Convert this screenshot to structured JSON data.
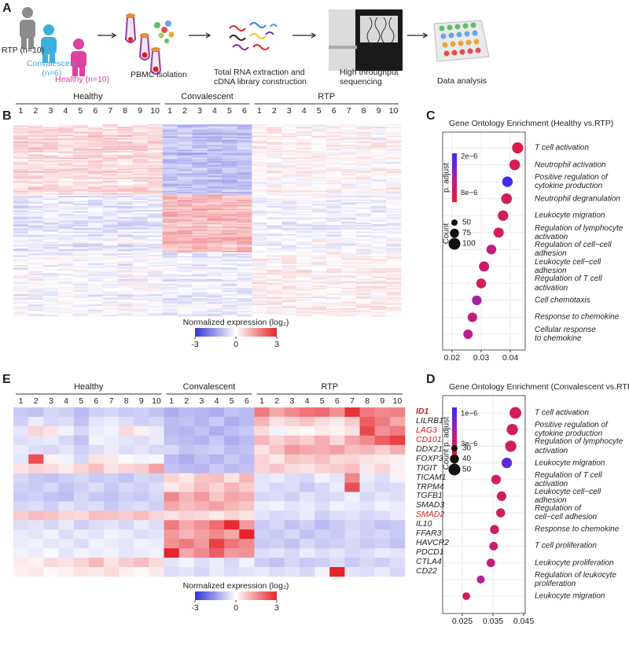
{
  "panel_labels": [
    "A",
    "B",
    "C",
    "D",
    "E"
  ],
  "workflow": {
    "labels": [
      {
        "text": "RTP (n=10)",
        "color": "#222222"
      },
      {
        "text": "Convalescent\n(n=6)",
        "color": "#3ba7d6"
      },
      {
        "text": "Healthy (n=10)",
        "color": "#d6409f"
      },
      {
        "text": "PBMC  isolation",
        "color": "#222222"
      },
      {
        "text": "Total RNA extraction and\ncDNA library construction",
        "color": "#222222"
      },
      {
        "text": "High throughput\nsequencing",
        "color": "#222222"
      },
      {
        "text": "Data analysis",
        "color": "#222222"
      }
    ]
  },
  "chart_data": [
    {
      "type": "heatmap",
      "groups": [
        {
          "name": "Healthy",
          "columns": [
            1,
            2,
            3,
            4,
            5,
            6,
            7,
            8,
            9,
            10
          ]
        },
        {
          "name": "Convalescent",
          "columns": [
            1,
            2,
            3,
            4,
            5,
            6
          ]
        },
        {
          "name": "RTP",
          "columns": [
            1,
            2,
            3,
            4,
            5,
            6,
            7,
            8,
            9,
            10
          ]
        }
      ],
      "colorbar_label": "Normalized expression (log₂)",
      "clim": [
        -3,
        3
      ],
      "cticks": [
        -3,
        0,
        3
      ],
      "cmap": [
        "#3535d8",
        "#ffffff",
        "#e5232a"
      ]
    },
    {
      "type": "heatmap",
      "groups": [
        {
          "name": "Healthy",
          "columns": [
            1,
            2,
            3,
            4,
            5,
            6,
            7,
            8,
            9,
            10
          ]
        },
        {
          "name": "Convalescent",
          "columns": [
            1,
            2,
            3,
            4,
            5,
            6
          ]
        },
        {
          "name": "RTP",
          "columns": [
            1,
            2,
            3,
            4,
            5,
            6,
            7,
            8,
            9,
            10
          ]
        }
      ],
      "genes": [
        "ID1",
        "LILRB1",
        "LAG3",
        "CD101",
        "DDX21",
        "FOXP3",
        "TIGIT",
        "TICAM1",
        "TRPM4",
        "TGFB1",
        "SMAD3",
        "SMAD2",
        "IL10",
        "FFAR3",
        "HAVCR2",
        "PDCD1",
        "CTLA4",
        "CD22"
      ],
      "label_colors": [
        "#d7191f",
        "#222222",
        "#d7191f",
        "#d7191f",
        "#222222",
        "#222222",
        "#222222",
        "#222222",
        "#222222",
        "#222222",
        "#222222",
        "#d7191f",
        "#222222",
        "#222222",
        "#222222",
        "#222222",
        "#222222",
        "#222222"
      ],
      "bold_rows": [
        0
      ],
      "values": [
        [
          -0.8,
          -0.9,
          -0.6,
          -0.7,
          -1.0,
          -0.7,
          -0.6,
          -0.8,
          -0.7,
          -0.9,
          -1.2,
          -1.0,
          -1.1,
          -1.2,
          -0.9,
          -1.0,
          1.8,
          1.2,
          1.6,
          1.9,
          2.0,
          1.5,
          2.8,
          1.8,
          1.6,
          1.7
        ],
        [
          -0.7,
          -0.3,
          -0.6,
          -0.5,
          -0.9,
          -0.4,
          -0.3,
          -0.5,
          -0.7,
          -0.6,
          -1.0,
          -0.9,
          -1.1,
          -0.8,
          -1.2,
          -1.0,
          1.0,
          0.4,
          0.6,
          0.8,
          0.5,
          0.3,
          0.7,
          2.2,
          1.8,
          1.2
        ],
        [
          -0.4,
          0.6,
          0.4,
          -0.2,
          -0.6,
          -0.3,
          -0.2,
          0.5,
          0.2,
          -0.3,
          -1.0,
          -1.1,
          -0.9,
          -1.2,
          -1.0,
          -0.8,
          0.5,
          -0.2,
          0.2,
          0.1,
          0.3,
          0.2,
          0.4,
          2.5,
          1.5,
          1.8
        ],
        [
          -0.5,
          -0.4,
          -0.3,
          -0.6,
          -0.9,
          -0.2,
          -0.3,
          -0.4,
          -0.5,
          -0.3,
          -0.9,
          -1.0,
          -1.1,
          -0.8,
          -1.2,
          -1.0,
          1.0,
          0.6,
          0.9,
          0.7,
          1.1,
          0.5,
          1.2,
          1.6,
          2.2,
          2.6
        ],
        [
          -0.3,
          -0.5,
          -0.6,
          -0.4,
          -0.7,
          -0.5,
          -0.3,
          -0.5,
          -0.4,
          -0.6,
          -0.6,
          -0.9,
          -0.8,
          -0.7,
          -1.0,
          -0.9,
          0.4,
          0.8,
          1.4,
          1.2,
          1.1,
          1.3,
          0.9,
          1.0,
          0.7,
          1.1
        ],
        [
          -0.4,
          2.4,
          0.2,
          -0.2,
          -0.6,
          0.4,
          0.3,
          0.1,
          -0.2,
          -0.1,
          -1.0,
          -1.2,
          -0.9,
          -1.1,
          -0.8,
          -1.0,
          0.6,
          0.3,
          0.8,
          0.7,
          0.9,
          0.5,
          0.6,
          0.4,
          0.3,
          0.2
        ],
        [
          0.4,
          0.6,
          0.5,
          0.3,
          0.6,
          0.9,
          0.4,
          0.6,
          0.7,
          1.3,
          -0.9,
          -1.0,
          -1.1,
          -0.8,
          -1.0,
          -0.9,
          0.6,
          0.8,
          0.5,
          0.4,
          0.6,
          0.7,
          0.9,
          0.3,
          0.6,
          0.2
        ],
        [
          -0.6,
          -0.8,
          -0.9,
          -0.7,
          -0.6,
          -0.8,
          -0.7,
          -0.9,
          -0.6,
          -0.7,
          0.6,
          0.3,
          0.8,
          0.9,
          0.4,
          1.0,
          -0.4,
          -0.3,
          -0.5,
          -0.6,
          -0.2,
          -0.4,
          1.6,
          -0.3,
          -0.5,
          -0.2
        ],
        [
          -0.7,
          -0.8,
          -0.6,
          -0.9,
          -0.7,
          -0.5,
          -0.8,
          -0.6,
          -0.7,
          -0.5,
          0.3,
          0.5,
          0.9,
          0.6,
          1.0,
          0.7,
          -0.4,
          -0.6,
          -0.5,
          -0.8,
          -0.6,
          -0.3,
          2.4,
          -0.4,
          -0.6,
          -0.5
        ],
        [
          -0.8,
          -0.7,
          -0.9,
          -1.0,
          -0.6,
          -0.8,
          -0.9,
          -0.7,
          -0.8,
          -0.6,
          1.6,
          1.0,
          1.4,
          0.8,
          1.2,
          1.1,
          -0.6,
          -0.5,
          -0.7,
          -0.4,
          -0.6,
          -0.5,
          -0.2,
          -0.6,
          -0.4,
          -0.5
        ],
        [
          -0.6,
          -0.5,
          -0.7,
          -0.4,
          -0.6,
          -0.5,
          -0.8,
          -0.6,
          -0.5,
          -0.7,
          1.2,
          0.9,
          1.1,
          1.3,
          1.0,
          0.8,
          -0.3,
          -0.2,
          -0.4,
          -0.3,
          -0.5,
          -0.2,
          -0.3,
          -0.4,
          -0.2,
          -0.3
        ],
        [
          0.7,
          0.9,
          0.8,
          0.6,
          0.5,
          0.9,
          0.8,
          0.7,
          0.9,
          0.6,
          0.4,
          0.6,
          0.5,
          0.3,
          0.6,
          0.4,
          -0.4,
          -0.6,
          -0.5,
          -0.3,
          -0.7,
          -0.5,
          -0.4,
          -0.6,
          -0.5,
          -0.3
        ],
        [
          -0.5,
          -0.4,
          -0.6,
          -0.3,
          -0.7,
          -0.5,
          -0.4,
          -0.6,
          -0.3,
          -0.5,
          1.8,
          1.2,
          1.5,
          2.0,
          2.9,
          1.4,
          -0.8,
          -0.6,
          -0.9,
          -0.7,
          -1.0,
          -0.8,
          -0.6,
          -0.7,
          -0.9,
          -0.8
        ],
        [
          -0.3,
          -0.4,
          -0.2,
          -0.5,
          -0.3,
          -0.4,
          -0.2,
          -0.3,
          -0.5,
          -0.4,
          1.4,
          1.0,
          1.3,
          1.6,
          1.2,
          3.0,
          -0.7,
          -0.8,
          -0.6,
          -0.9,
          -0.7,
          -0.8,
          -0.5,
          -0.7,
          -0.6,
          -0.8
        ],
        [
          -0.3,
          -0.2,
          -0.4,
          -0.3,
          -0.5,
          -0.2,
          -0.3,
          -0.4,
          -0.2,
          -0.3,
          1.5,
          1.8,
          1.4,
          2.6,
          1.9,
          1.6,
          -0.8,
          -0.7,
          -0.9,
          -0.6,
          -0.8,
          -0.7,
          -0.6,
          -0.8,
          -0.7,
          -0.9
        ],
        [
          -0.2,
          -0.3,
          -0.1,
          -0.4,
          -0.2,
          -0.3,
          -0.2,
          -0.4,
          -0.3,
          -0.2,
          3.0,
          1.2,
          1.6,
          2.2,
          1.4,
          1.5,
          -0.5,
          -0.4,
          -0.6,
          -0.3,
          -0.5,
          -0.4,
          -0.6,
          -0.5,
          -0.3,
          -0.4
        ],
        [
          0.3,
          0.2,
          0.5,
          0.4,
          0.6,
          1.0,
          0.4,
          0.7,
          0.9,
          0.5,
          -0.4,
          -0.2,
          -0.5,
          -0.3,
          -0.6,
          -0.2,
          -0.7,
          -0.9,
          -0.6,
          -0.8,
          -0.7,
          -0.5,
          -0.8,
          -0.6,
          -0.7,
          -0.5
        ],
        [
          0.2,
          0.3,
          0.1,
          0.2,
          0.4,
          0.3,
          0.5,
          0.2,
          0.1,
          0.3,
          -0.5,
          -0.4,
          -0.6,
          -0.3,
          -0.5,
          -0.4,
          -0.3,
          -0.5,
          -0.4,
          -0.6,
          -0.2,
          3.0,
          -0.4,
          -0.5,
          -0.3,
          -0.6
        ]
      ],
      "colorbar_label": "Normalized expression (log₂)",
      "clim": [
        -3,
        3
      ],
      "cticks": [
        -3,
        0,
        3
      ],
      "cmap": [
        "#3535d8",
        "#ffffff",
        "#e5232a"
      ]
    },
    {
      "type": "dot",
      "title": "Gene Ontology Enrichment (Healthy vs.RTP)",
      "terms": [
        "T cell activation",
        "Neutrophil activation",
        "Positive regulation of\ncytokine production",
        "Neutrophil degranulation",
        "Leukocyte migration",
        "Regulation of lymphocyte\nactivation",
        "Regulation of cell−cell\nadhesion",
        "Leukocyte cell−cell adhesion",
        "Regulation of T cell activation",
        "Cell chemotaxis",
        "Response to chemokine",
        "Cellular response\nto chemokine"
      ],
      "x": [
        0.0425,
        0.0415,
        0.039,
        0.0387,
        0.0375,
        0.036,
        0.0335,
        0.031,
        0.03,
        0.0285,
        0.027,
        0.0255
      ],
      "count": [
        95,
        90,
        88,
        90,
        88,
        85,
        82,
        85,
        82,
        80,
        80,
        78
      ],
      "p_adjust": [
        8.2e-06,
        7.9e-06,
        2e-06,
        7.5e-06,
        7.5e-06,
        7.6e-06,
        6.5e-06,
        7e-06,
        7.5e-06,
        5e-06,
        6.5e-06,
        6e-06
      ],
      "xlim": [
        0.0168,
        0.0451
      ],
      "xticks": [
        0.02,
        0.03,
        0.04
      ],
      "grid": true,
      "color_label": "p. adjust",
      "clim": [
        1.5e-06,
        9.5e-06
      ],
      "color_ticks": [
        {
          "value": 2e-06,
          "label": "2e−6"
        },
        {
          "value": 8e-06,
          "label": "8e−6"
        }
      ],
      "cmap": [
        "#2d2dff",
        "#b0209a",
        "#ee1c25"
      ],
      "size_label": "Count",
      "size_ticks": [
        50,
        75,
        100
      ]
    },
    {
      "type": "dot",
      "title": "Gene Ontology Enrichment (Convalescent vs.RTP)",
      "terms": [
        "T cell activation",
        "Positive regulation of\ncytokine production",
        "Regulation of lymphocyte\nactivation",
        "Leukocyte migration",
        "Regulation of T cell\nactivation",
        "Leukocyte cell−cell\nadhesion",
        "Regulation of\ncell−cell adhesion",
        "Response to chemokine",
        "T cell proliferation",
        "Leukocyte proliferation",
        "Regulation of leukocyte\nproliferation",
        "Leukocyte migration"
      ],
      "x": [
        0.0423,
        0.0413,
        0.0408,
        0.0395,
        0.036,
        0.0378,
        0.0375,
        0.0355,
        0.0352,
        0.0343,
        0.031,
        0.0263
      ],
      "count": [
        50,
        48,
        48,
        45,
        42,
        42,
        40,
        40,
        38,
        38,
        36,
        35
      ],
      "p_adjust": [
        3.1e-06,
        3e-06,
        3e-06,
        1.2e-06,
        3e-06,
        3e-06,
        3e-06,
        2.9e-06,
        2.7e-06,
        2.6e-06,
        2.2e-06,
        3e-06
      ],
      "xlim": [
        0.0186,
        0.0455
      ],
      "xticks": [
        0.025,
        0.035,
        0.045
      ],
      "grid": true,
      "color_label": "p. adjust",
      "clim": [
        6e-07,
        3.8e-06
      ],
      "color_ticks": [
        {
          "value": 1e-06,
          "label": "1e−6"
        },
        {
          "value": 3e-06,
          "label": "3e−6"
        }
      ],
      "cmap": [
        "#2d2dff",
        "#b0209a",
        "#ee1c25"
      ],
      "size_label": "Count",
      "size_ticks": [
        30,
        40,
        50
      ]
    }
  ]
}
